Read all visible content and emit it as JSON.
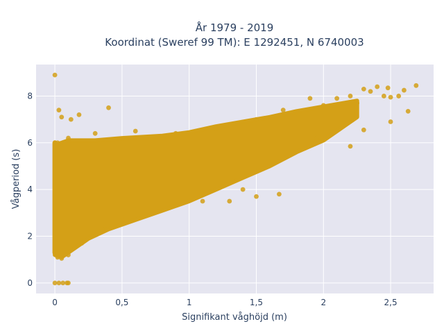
{
  "chart_data": {
    "type": "scatter",
    "title_line1": "År 1979 - 2019",
    "title_line2": "Koordinat (Sweref 99 TM): E 1292451, N 6740003",
    "xlabel": "Signifikant våghöjd (m)",
    "ylabel": "Vågperiod (s)",
    "xlim": [
      -0.14,
      2.82
    ],
    "ylim": [
      -0.45,
      9.35
    ],
    "x_ticks": [
      0,
      0.5,
      1,
      1.5,
      2,
      2.5
    ],
    "x_tick_labels": [
      "0",
      "0,5",
      "1",
      "1,5",
      "2",
      "2,5"
    ],
    "y_ticks": [
      0,
      2,
      4,
      6,
      8
    ],
    "y_tick_labels": [
      "0",
      "2",
      "4",
      "6",
      "8"
    ],
    "grid": true,
    "marker_color": "#d4a017",
    "plot_background": "#e5e5f0",
    "points": [
      {
        "x": 0.0,
        "y": 8.9
      },
      {
        "x": 0.03,
        "y": 7.4
      },
      {
        "x": 0.05,
        "y": 7.1
      },
      {
        "x": 0.12,
        "y": 7.0
      },
      {
        "x": 0.18,
        "y": 7.2
      },
      {
        "x": 0.4,
        "y": 7.5
      },
      {
        "x": 0.0,
        "y": 0.0
      },
      {
        "x": 0.03,
        "y": 0.0
      },
      {
        "x": 0.06,
        "y": 0.0
      },
      {
        "x": 0.09,
        "y": 0.0
      },
      {
        "x": 0.1,
        "y": 0.0
      },
      {
        "x": 0.02,
        "y": 1.1
      },
      {
        "x": 0.05,
        "y": 1.05
      },
      {
        "x": 0.1,
        "y": 1.2
      },
      {
        "x": 0.2,
        "y": 1.7
      },
      {
        "x": 0.35,
        "y": 2.3
      },
      {
        "x": 0.5,
        "y": 2.7
      },
      {
        "x": 0.02,
        "y": 6.0
      },
      {
        "x": 0.1,
        "y": 6.2
      },
      {
        "x": 0.3,
        "y": 6.4
      },
      {
        "x": 0.6,
        "y": 6.5
      },
      {
        "x": 0.9,
        "y": 6.4
      },
      {
        "x": 1.2,
        "y": 6.6
      },
      {
        "x": 1.5,
        "y": 7.0
      },
      {
        "x": 1.7,
        "y": 7.4
      },
      {
        "x": 1.9,
        "y": 7.9
      },
      {
        "x": 2.0,
        "y": 7.6
      },
      {
        "x": 2.1,
        "y": 7.9
      },
      {
        "x": 2.2,
        "y": 8.0
      },
      {
        "x": 2.25,
        "y": 7.7
      },
      {
        "x": 2.3,
        "y": 8.3
      },
      {
        "x": 2.35,
        "y": 8.2
      },
      {
        "x": 2.4,
        "y": 8.4
      },
      {
        "x": 2.45,
        "y": 8.0
      },
      {
        "x": 2.48,
        "y": 8.35
      },
      {
        "x": 2.5,
        "y": 7.95
      },
      {
        "x": 2.56,
        "y": 8.0
      },
      {
        "x": 2.6,
        "y": 8.25
      },
      {
        "x": 2.63,
        "y": 7.35
      },
      {
        "x": 2.69,
        "y": 8.45
      },
      {
        "x": 2.5,
        "y": 6.9
      },
      {
        "x": 2.3,
        "y": 6.55
      },
      {
        "x": 2.2,
        "y": 5.85
      },
      {
        "x": 1.95,
        "y": 6.2
      },
      {
        "x": 1.5,
        "y": 3.7
      },
      {
        "x": 1.67,
        "y": 3.8
      },
      {
        "x": 1.4,
        "y": 4.0
      },
      {
        "x": 1.3,
        "y": 3.5
      },
      {
        "x": 1.1,
        "y": 3.5
      }
    ],
    "density_band": {
      "upper": [
        [
          0.0,
          5.9
        ],
        [
          0.1,
          6.1
        ],
        [
          0.3,
          6.1
        ],
        [
          0.5,
          6.2
        ],
        [
          0.8,
          6.3
        ],
        [
          1.0,
          6.45
        ],
        [
          1.2,
          6.7
        ],
        [
          1.4,
          6.9
        ],
        [
          1.6,
          7.1
        ],
        [
          1.8,
          7.35
        ],
        [
          2.0,
          7.55
        ],
        [
          2.15,
          7.7
        ],
        [
          2.25,
          7.8
        ]
      ],
      "lower": [
        [
          2.25,
          7.1
        ],
        [
          2.1,
          6.5
        ],
        [
          2.0,
          6.1
        ],
        [
          1.8,
          5.6
        ],
        [
          1.6,
          5.0
        ],
        [
          1.4,
          4.5
        ],
        [
          1.2,
          4.0
        ],
        [
          1.0,
          3.5
        ],
        [
          0.8,
          3.1
        ],
        [
          0.6,
          2.7
        ],
        [
          0.4,
          2.3
        ],
        [
          0.25,
          1.9
        ],
        [
          0.1,
          1.3
        ],
        [
          0.05,
          1.1
        ],
        [
          0.0,
          1.2
        ]
      ]
    },
    "left_strip": {
      "x": 0.0,
      "y_from": 1.3,
      "y_to": 6.0
    }
  }
}
